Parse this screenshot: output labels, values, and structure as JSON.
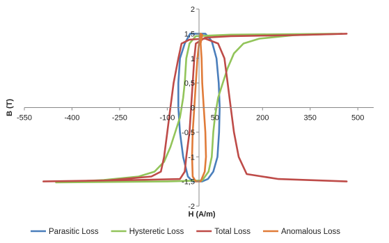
{
  "chart_data": {
    "type": "line",
    "xlabel": "H (A/m)",
    "ylabel": "B (T)",
    "xlim": [
      -550,
      550
    ],
    "ylim": [
      -2,
      2
    ],
    "x_ticks": [
      "-550",
      "-400",
      "-250",
      "-100",
      "50",
      "200",
      "350",
      "500"
    ],
    "x_tick_values": [
      -550,
      -400,
      -250,
      -100,
      50,
      200,
      350,
      500
    ],
    "y_ticks": [
      "2",
      "1,5",
      "1",
      "0,5",
      "0",
      "-0,5",
      "-1",
      "-1,5",
      "-2"
    ],
    "y_tick_values": [
      2,
      1.5,
      1,
      0.5,
      0,
      -0.5,
      -1,
      -1.5,
      -2
    ],
    "grid": false,
    "legend_position": "bottom",
    "series": [
      {
        "name": "Parasitic Loss",
        "color": "#4a7ebb",
        "points": [
          [
            -28,
            1.5
          ],
          [
            -45,
            1.3
          ],
          [
            -60,
            1.0
          ],
          [
            -65,
            0.5
          ],
          [
            -65,
            0
          ],
          [
            -60,
            -0.5
          ],
          [
            -50,
            -1.0
          ],
          [
            -35,
            -1.4
          ],
          [
            -20,
            -1.5
          ],
          [
            10,
            -1.5
          ],
          [
            28,
            -1.45
          ],
          [
            45,
            -1.3
          ],
          [
            58,
            -1.0
          ],
          [
            63,
            -0.5
          ],
          [
            65,
            0
          ],
          [
            62,
            0.5
          ],
          [
            55,
            1.0
          ],
          [
            40,
            1.35
          ],
          [
            20,
            1.5
          ],
          [
            -28,
            1.5
          ]
        ]
      },
      {
        "name": "Hysteretic Loss",
        "color": "#92c45a",
        "points": [
          [
            450,
            1.5
          ],
          [
            300,
            1.47
          ],
          [
            190,
            1.4
          ],
          [
            140,
            1.3
          ],
          [
            110,
            1.1
          ],
          [
            90,
            0.8
          ],
          [
            75,
            0.5
          ],
          [
            60,
            0.2
          ],
          [
            50,
            -0.2
          ],
          [
            45,
            -0.5
          ],
          [
            40,
            -1.0
          ],
          [
            30,
            -1.3
          ],
          [
            10,
            -1.48
          ],
          [
            -100,
            -1.5
          ],
          [
            -450,
            -1.52
          ],
          [
            -300,
            -1.47
          ],
          [
            -190,
            -1.4
          ],
          [
            -140,
            -1.3
          ],
          [
            -110,
            -1.1
          ],
          [
            -90,
            -0.8
          ],
          [
            -75,
            -0.5
          ],
          [
            -60,
            -0.2
          ],
          [
            -50,
            0.2
          ],
          [
            -45,
            0.5
          ],
          [
            -40,
            1.0
          ],
          [
            -30,
            1.3
          ],
          [
            -10,
            1.45
          ],
          [
            100,
            1.48
          ],
          [
            450,
            1.5
          ]
        ]
      },
      {
        "name": "Total Loss",
        "color": "#be4b48",
        "points": [
          [
            465,
            1.5
          ],
          [
            300,
            1.47
          ],
          [
            100,
            1.45
          ],
          [
            20,
            1.42
          ],
          [
            -10,
            1.3
          ],
          [
            -15,
            1.0
          ],
          [
            -20,
            0.5
          ],
          [
            -25,
            0
          ],
          [
            -30,
            -0.5
          ],
          [
            -40,
            -1.0
          ],
          [
            -45,
            -1.3
          ],
          [
            -60,
            -1.45
          ],
          [
            -200,
            -1.47
          ],
          [
            -490,
            -1.5
          ],
          [
            -290,
            -1.48
          ],
          [
            -150,
            -1.4
          ],
          [
            -120,
            -1.3
          ],
          [
            -110,
            -1.0
          ],
          [
            -100,
            -0.5
          ],
          [
            -90,
            0
          ],
          [
            -80,
            0.5
          ],
          [
            -65,
            1.0
          ],
          [
            -55,
            1.3
          ],
          [
            -30,
            1.38
          ],
          [
            20,
            1.4
          ],
          [
            60,
            1.3
          ],
          [
            80,
            1.0
          ],
          [
            90,
            0.5
          ],
          [
            100,
            0
          ],
          [
            110,
            -0.5
          ],
          [
            125,
            -1.0
          ],
          [
            150,
            -1.35
          ],
          [
            250,
            -1.45
          ],
          [
            465,
            -1.5
          ]
        ]
      },
      {
        "name": "Anomalous Loss",
        "color": "#e07b39",
        "points": [
          [
            5,
            1.5
          ],
          [
            0,
            1.3
          ],
          [
            -5,
            1.0
          ],
          [
            -10,
            0.5
          ],
          [
            -15,
            0
          ],
          [
            -20,
            -0.5
          ],
          [
            -22,
            -1.0
          ],
          [
            -20,
            -1.4
          ],
          [
            -10,
            -1.5
          ],
          [
            5,
            -1.5
          ],
          [
            18,
            -1.3
          ],
          [
            22,
            -1.0
          ],
          [
            20,
            -0.5
          ],
          [
            15,
            0
          ],
          [
            10,
            0.5
          ],
          [
            8,
            1.0
          ],
          [
            5,
            1.3
          ],
          [
            10,
            1.48
          ],
          [
            5,
            1.5
          ]
        ]
      }
    ]
  }
}
